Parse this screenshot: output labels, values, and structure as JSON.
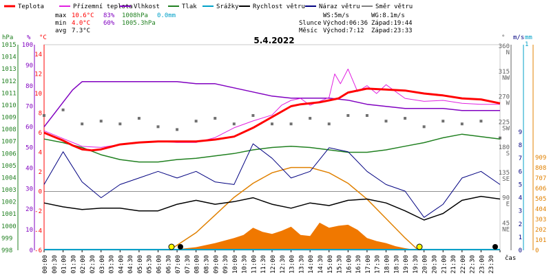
{
  "chart_data": {
    "type": "line",
    "title": "5.4.2022",
    "legend": [
      {
        "name": "Teplota",
        "color": "#ff0000"
      },
      {
        "name": "Přízemní teplota",
        "color": "#e020e0"
      },
      {
        "name": "Vlhkost",
        "color": "#8000c0"
      },
      {
        "name": "Tlak",
        "color": "#208020"
      },
      {
        "name": "Srážky",
        "color": "#00a0c8"
      },
      {
        "name": "Rychlost větru",
        "color": "#000000"
      },
      {
        "name": "Náraz větru",
        "color": "#000080"
      },
      {
        "name": "Směr větru",
        "color": "#808080"
      }
    ],
    "stats": {
      "max_label": "max",
      "max_temp": "10.6°C",
      "max_hum": "83%",
      "max_press": "1008hPa",
      "max_rain": "0.0mm",
      "min_label": "min",
      "min_temp": "4.0°C",
      "min_hum": "60%",
      "min_press": "1005.3hPa",
      "avg_label": "avg",
      "avg_temp": "7.3°C",
      "ws": "WS:5m/s",
      "wg": "WG:8.1m/s",
      "sun_label": "Slunce",
      "sunrise": "Východ:06:36",
      "sunset": "Západ:19:44",
      "moon_label": "Měsíc",
      "moonrise": "Východ:7:12",
      "moonset": "Západ:23:33"
    },
    "axes": {
      "hpa": {
        "label": "hPa",
        "color": "#208020",
        "ticks": [
          "998",
          "999",
          "1000",
          "1001",
          "1002",
          "1003",
          "1004",
          "1005",
          "1006",
          "1007",
          "1008",
          "1009",
          "1010",
          "1011",
          "1012",
          "1013",
          "1014",
          "1015"
        ]
      },
      "pct": {
        "label": "%",
        "color": "#8000c0",
        "ticks": [
          "0",
          "10",
          "20",
          "30",
          "40",
          "50",
          "60",
          "70",
          "80",
          "90",
          "100"
        ]
      },
      "degc": {
        "label": "°C",
        "color": "#ff0000",
        "ticks": [
          "-6",
          "-4",
          "-2",
          "0",
          "2",
          "4",
          "6",
          "8",
          "10",
          "12",
          "14"
        ]
      },
      "dir": {
        "label": "°",
        "color": "#606060",
        "ticks": [
          {
            "deg": "360",
            "name": "N"
          },
          {
            "deg": "315",
            "name": "NW"
          },
          {
            "deg": "270",
            "name": "W"
          },
          {
            "deg": "225",
            "name": "SW"
          },
          {
            "deg": "180",
            "name": "S"
          },
          {
            "deg": "135",
            "name": "SE"
          },
          {
            "deg": "90",
            "name": "E"
          },
          {
            "deg": "45",
            "name": "NE"
          }
        ]
      },
      "ms": {
        "label": "m/s",
        "color": "#000080",
        "ticks": [
          "0",
          "1",
          "2",
          "3",
          "4",
          "5",
          "6",
          "7",
          "8",
          "9"
        ]
      },
      "mm": {
        "label": "mm",
        "color": "#00a0c8",
        "ticks": [
          "1"
        ]
      },
      "solar": {
        "color": "#e08000",
        "ticks": [
          "0",
          "101",
          "202",
          "303",
          "404",
          "505",
          "606",
          "707",
          "808",
          "909"
        ]
      },
      "time_label": "čas",
      "times": [
        "00:00",
        "00:30",
        "01:00",
        "01:30",
        "02:00",
        "02:30",
        "03:00",
        "03:30",
        "04:00",
        "04:30",
        "05:00",
        "05:30",
        "06:00",
        "06:30",
        "07:00",
        "07:30",
        "08:00",
        "08:30",
        "09:00",
        "09:30",
        "10:00",
        "10:30",
        "11:00",
        "11:30",
        "12:00",
        "12:30",
        "13:00",
        "13:30",
        "14:00",
        "14:30",
        "15:00",
        "15:30",
        "16:00",
        "16:30",
        "17:00",
        "17:30",
        "18:00",
        "18:30",
        "19:00",
        "19:30",
        "20:00",
        "20:30",
        "21:00",
        "21:30",
        "22:00",
        "22:30",
        "23:00",
        "23:30"
      ]
    },
    "series": [
      {
        "name": "Teplota",
        "unit": "°C",
        "x_hours": [
          0,
          0.5,
          1,
          1.5,
          2,
          2.5,
          3,
          4,
          5,
          6,
          7,
          8,
          9,
          10,
          11,
          12,
          13,
          13.5,
          14,
          14.5,
          15,
          15.5,
          16,
          17,
          18,
          19,
          20,
          21,
          22,
          23,
          24
        ],
        "values": [
          6.0,
          5.6,
          5.2,
          4.7,
          4.3,
          4.2,
          4.3,
          4.8,
          5.0,
          5.1,
          5.1,
          5.1,
          5.3,
          5.6,
          6.5,
          7.6,
          8.7,
          8.9,
          9.0,
          9.1,
          9.3,
          9.5,
          10.1,
          10.5,
          10.4,
          10.3,
          10.0,
          9.8,
          9.5,
          9.4,
          9.0
        ]
      },
      {
        "name": "Přízemní teplota",
        "unit": "°C",
        "x_hours": [
          0,
          1,
          2,
          3,
          4,
          5,
          6,
          7,
          8,
          9,
          10,
          11,
          12,
          12.5,
          13,
          13.5,
          14,
          14.5,
          15,
          15.3,
          15.6,
          16,
          16.5,
          17,
          17.5,
          18,
          19,
          20,
          21,
          22,
          23,
          24
        ],
        "values": [
          6.2,
          5.4,
          4.6,
          4.5,
          4.8,
          5.0,
          5.1,
          5.0,
          5.0,
          5.5,
          6.5,
          7.2,
          7.8,
          8.8,
          9.3,
          9.5,
          8.8,
          9.2,
          9.6,
          12.0,
          11.0,
          12.5,
          10.2,
          10.8,
          10.0,
          10.9,
          9.5,
          9.2,
          9.3,
          9.0,
          8.9,
          8.9
        ]
      },
      {
        "name": "Vlhkost",
        "unit": "%",
        "x_hours": [
          0,
          0.5,
          1,
          1.5,
          2,
          3,
          4,
          5,
          6,
          7,
          8,
          9,
          10,
          11,
          12,
          13,
          14,
          15,
          16,
          17,
          18,
          19,
          20,
          21,
          22,
          23,
          24
        ],
        "values": [
          60,
          66,
          72,
          78,
          82,
          82,
          82,
          82,
          82,
          82,
          81,
          81,
          79,
          77,
          75,
          74,
          74,
          74,
          73,
          71,
          70,
          69,
          69,
          69,
          68,
          68,
          68
        ]
      },
      {
        "name": "Tlak",
        "unit": "hPa",
        "x_hours": [
          0,
          1,
          2,
          3,
          4,
          5,
          6,
          7,
          8,
          9,
          10,
          11,
          12,
          13,
          14,
          15,
          16,
          17,
          18,
          19,
          20,
          21,
          22,
          23,
          24
        ],
        "values": [
          1007.2,
          1006.9,
          1006.5,
          1005.9,
          1005.5,
          1005.3,
          1005.3,
          1005.5,
          1005.6,
          1005.8,
          1006.0,
          1006.3,
          1006.5,
          1006.6,
          1006.5,
          1006.3,
          1006.1,
          1006.1,
          1006.3,
          1006.6,
          1006.9,
          1007.3,
          1007.6,
          1007.4,
          1007.2
        ]
      },
      {
        "name": "Rychlost větru",
        "unit": "m/s",
        "x_hours": [
          0,
          1,
          2,
          3,
          4,
          5,
          6,
          7,
          8,
          9,
          10,
          11,
          12,
          13,
          14,
          15,
          16,
          17,
          18,
          19,
          20,
          21,
          22,
          23,
          24
        ],
        "values": [
          3.6,
          3.3,
          3.1,
          3.2,
          3.2,
          3.0,
          3.0,
          3.5,
          3.8,
          3.5,
          3.7,
          4.0,
          3.5,
          3.2,
          3.6,
          3.4,
          3.8,
          3.9,
          3.6,
          3.0,
          2.3,
          2.8,
          3.8,
          4.1,
          3.9
        ]
      },
      {
        "name": "Náraz větru",
        "unit": "m/s",
        "x_hours": [
          0,
          1,
          2,
          3,
          4,
          5,
          6,
          7,
          8,
          9,
          10,
          11,
          12,
          13,
          14,
          15,
          16,
          17,
          18,
          19,
          20,
          21,
          22,
          23,
          24
        ],
        "values": [
          5.0,
          7.5,
          5.2,
          4.0,
          5.0,
          5.5,
          6.0,
          5.5,
          6.0,
          5.2,
          5.0,
          8.1,
          7.0,
          5.5,
          6.0,
          7.8,
          7.5,
          6.0,
          5.0,
          4.5,
          2.5,
          3.5,
          5.5,
          6.0,
          5.0
        ]
      },
      {
        "name": "Směr větru",
        "unit": "°",
        "x_hours": [
          0,
          1,
          2,
          3,
          4,
          5,
          6,
          7,
          8,
          9,
          10,
          11,
          12,
          13,
          14,
          15,
          16,
          17,
          18,
          19,
          20,
          21,
          22,
          23,
          24
        ],
        "values": [
          240,
          250,
          225,
          230,
          225,
          235,
          220,
          215,
          230,
          235,
          225,
          240,
          225,
          225,
          235,
          225,
          240,
          240,
          230,
          235,
          220,
          230,
          225,
          230,
          200
        ]
      },
      {
        "name": "Srážky",
        "unit": "mm",
        "x_hours": [
          0,
          24
        ],
        "values": [
          0,
          0
        ]
      }
    ],
    "solar": {
      "unit": "W/m²",
      "x_hours": [
        6.6,
        7,
        8,
        9,
        10,
        10.5,
        11,
        11.5,
        12,
        12.5,
        13,
        13.5,
        14,
        14.5,
        15,
        15.5,
        16,
        16.5,
        17,
        17.5,
        18,
        18.5,
        19,
        19.7
      ],
      "values": [
        0,
        10,
        30,
        70,
        120,
        150,
        220,
        180,
        160,
        190,
        230,
        150,
        140,
        270,
        220,
        240,
        250,
        200,
        120,
        90,
        70,
        40,
        20,
        0
      ]
    },
    "sun_altitude_deg": {
      "x_hours": [
        6.6,
        8,
        9,
        10,
        11,
        12,
        13,
        14,
        15,
        16,
        17,
        18,
        19,
        19.7
      ],
      "values": [
        0,
        10,
        20,
        30,
        38,
        44,
        47,
        47,
        44,
        38,
        29,
        18,
        7,
        0
      ]
    }
  }
}
